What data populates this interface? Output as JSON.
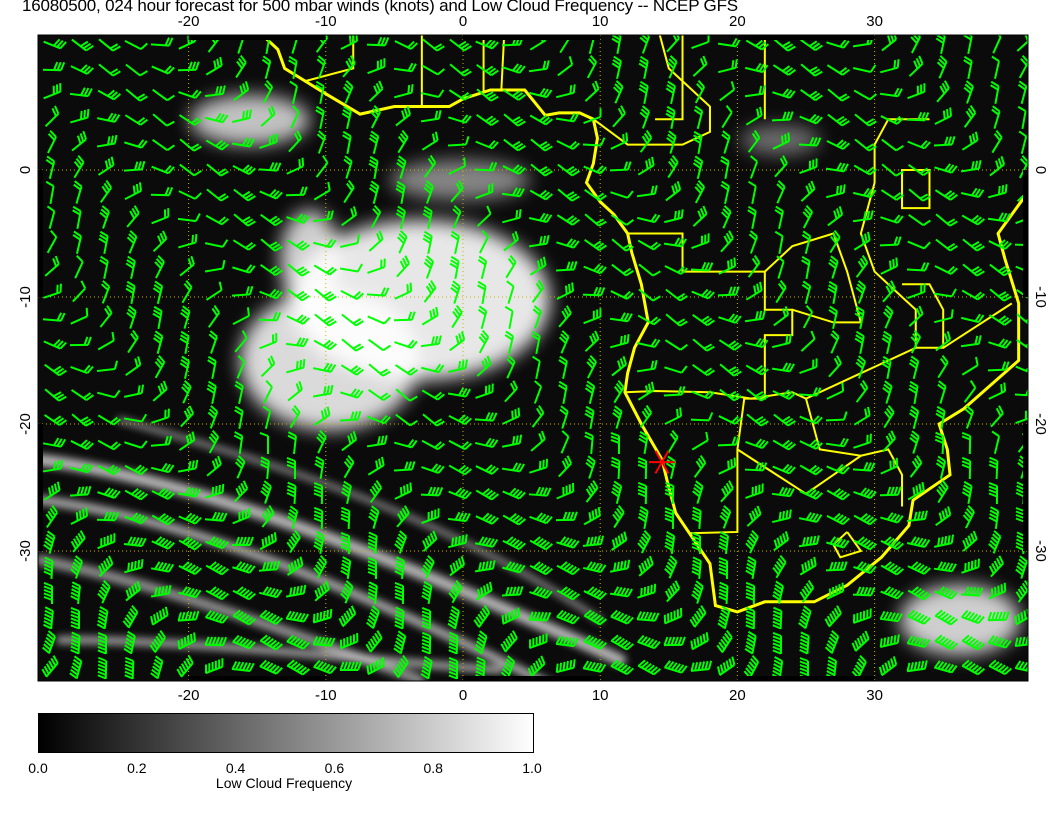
{
  "title": "16080500, 024 hour forecast for 500 mbar winds (knots) and Low Cloud Frequency -- NCEP GFS",
  "map": {
    "lon_range": [
      -31,
      41
    ],
    "lat_range": [
      -40,
      10.5
    ],
    "lon_ticks": [
      "-20",
      "-10",
      "0",
      "10",
      "20",
      "30"
    ],
    "lon_tick_values": [
      -20,
      -10,
      0,
      10,
      20,
      30
    ],
    "lat_ticks": [
      "0",
      "-10",
      "-20",
      "-30"
    ],
    "lat_tick_values": [
      0,
      -10,
      -20,
      -30
    ],
    "grid": "dotted",
    "coastline_color": "#ffff00",
    "wind_barb_color": "#00ff00",
    "marker": {
      "lon": 14.5,
      "lat": -23,
      "color": "#ff0000",
      "icon": "asterisk-marker"
    }
  },
  "colorbar": {
    "label": "Low Cloud Frequency",
    "ticks": [
      "0.0",
      "0.2",
      "0.4",
      "0.6",
      "0.8",
      "1.0"
    ],
    "range": [
      0,
      1
    ],
    "colors": [
      "#000000",
      "#ffffff"
    ]
  }
}
